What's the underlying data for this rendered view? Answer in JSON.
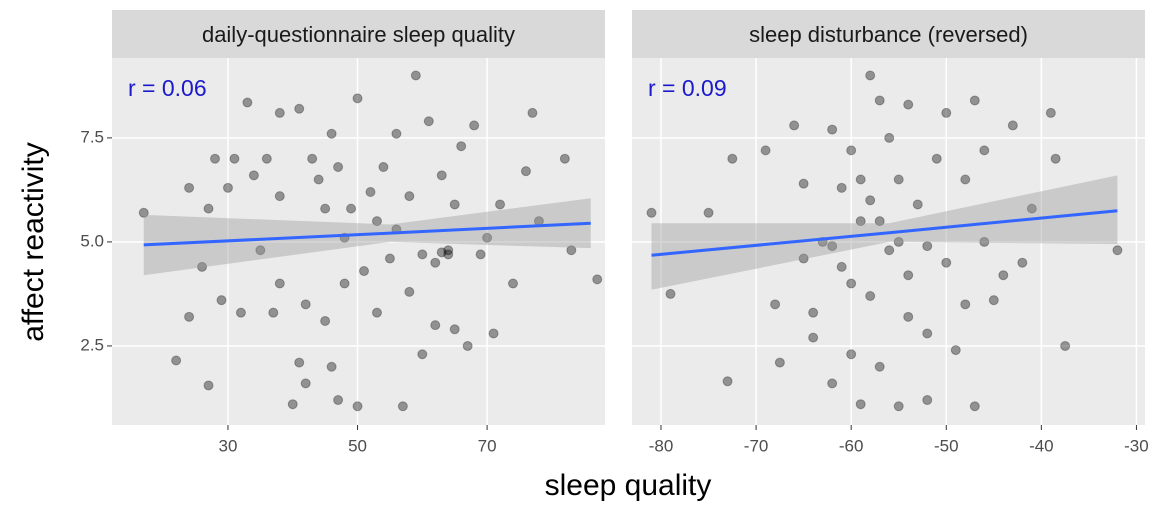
{
  "ylabel": "affect reactivity",
  "xlabel": "sleep quality",
  "grid": true,
  "ylim": [
    0.6,
    9.42
  ],
  "yticks": [
    7.5,
    {
      "value": 5,
      "label": "5.0"
    },
    2.5
  ],
  "chart_data": [
    {
      "type": "scatter",
      "title": "daily-questionnaire sleep quality",
      "annotation": "r = 0.06",
      "color": "#000000",
      "xlim": [
        12.1,
        88.2
      ],
      "xticks": [
        30,
        50,
        70
      ],
      "x": [
        17,
        22,
        24,
        24,
        26,
        27,
        27,
        28,
        29,
        30,
        31,
        32,
        33,
        34,
        35,
        36,
        37,
        38,
        38,
        40,
        41,
        41,
        42,
        42,
        43,
        44,
        45,
        45,
        46,
        46,
        47,
        47,
        48,
        49,
        50,
        50,
        51,
        52,
        53,
        54,
        55,
        56,
        56,
        57,
        58,
        58,
        59,
        60,
        61,
        62,
        62,
        63,
        64,
        65,
        65,
        66,
        67,
        68,
        69,
        70,
        71,
        72,
        74,
        76,
        77,
        78,
        82,
        83,
        87,
        53,
        60,
        63,
        64,
        38,
        48
      ],
      "y": [
        5.7,
        2.15,
        6.3,
        3.2,
        4.4,
        1.55,
        5.8,
        7.0,
        3.6,
        6.3,
        7.0,
        3.3,
        8.35,
        6.6,
        4.8,
        7.0,
        3.3,
        8.1,
        4.0,
        1.1,
        8.2,
        2.1,
        3.5,
        1.6,
        7.0,
        6.5,
        5.8,
        3.1,
        2.0,
        7.6,
        6.8,
        1.2,
        5.1,
        5.8,
        1.05,
        8.45,
        4.3,
        6.2,
        3.3,
        6.8,
        4.6,
        7.6,
        5.3,
        1.05,
        3.8,
        6.1,
        9.0,
        2.3,
        7.9,
        4.5,
        3.0,
        6.6,
        4.8,
        5.9,
        2.9,
        7.3,
        2.5,
        7.8,
        4.7,
        5.1,
        2.8,
        5.9,
        4.0,
        6.7,
        8.1,
        5.5,
        7.0,
        4.8,
        4.1,
        5.5,
        4.7,
        4.75,
        4.7,
        6.1,
        4.0
      ],
      "fit": {
        "color": "#3366ff",
        "x": [
          17,
          55,
          86
        ],
        "y": [
          4.93,
          5.21,
          5.45
        ],
        "lower": [
          4.2,
          5.0,
          4.85
        ],
        "upper": [
          5.65,
          5.42,
          6.05
        ]
      }
    },
    {
      "type": "scatter",
      "title": "sleep disturbance (reversed)",
      "annotation": "r = 0.09",
      "color": "#000000",
      "xlim": [
        -83.05,
        -29.1
      ],
      "xticks": [
        -80,
        -70,
        -60,
        -50,
        -40,
        -30
      ],
      "x": [
        -81,
        -79,
        -75,
        -73,
        -72.5,
        -69,
        -68,
        -67.5,
        -66,
        -65,
        -65,
        -64,
        -64,
        -63,
        -62,
        -62,
        -61,
        -61,
        -60,
        -60,
        -59,
        -59,
        -58,
        -58,
        -58,
        -57,
        -57,
        -56,
        -56,
        -55,
        -55,
        -54,
        -54,
        -54,
        -53,
        -52,
        -52,
        -51,
        -50,
        -50,
        -49,
        -48,
        -48,
        -47,
        -47,
        -46,
        -46,
        -45,
        -44,
        -43,
        -42,
        -41,
        -39,
        -38.5,
        -37.5,
        -32,
        -59,
        -60,
        -55,
        -52,
        -57,
        -62
      ],
      "y": [
        5.7,
        3.75,
        5.7,
        1.65,
        7.0,
        7.2,
        3.5,
        2.1,
        7.8,
        4.6,
        6.4,
        2.7,
        3.3,
        5.0,
        7.7,
        1.6,
        4.4,
        6.3,
        2.3,
        7.2,
        5.5,
        1.1,
        9.0,
        3.7,
        6.0,
        8.4,
        2.0,
        4.8,
        7.5,
        1.05,
        6.5,
        3.2,
        8.3,
        4.2,
        5.9,
        1.2,
        2.8,
        7.0,
        8.1,
        4.5,
        2.4,
        6.5,
        3.5,
        8.4,
        1.05,
        5.0,
        7.2,
        3.6,
        4.2,
        7.8,
        4.5,
        5.8,
        8.1,
        7.0,
        2.5,
        4.8,
        6.5,
        4.0,
        5.0,
        4.9,
        5.5,
        4.9
      ],
      "fit": {
        "color": "#3366ff",
        "x": [
          -81,
          -56,
          -32
        ],
        "y": [
          4.68,
          5.22,
          5.75
        ],
        "lower": [
          3.85,
          5.0,
          4.95
        ],
        "upper": [
          5.45,
          5.45,
          6.6
        ]
      }
    }
  ]
}
